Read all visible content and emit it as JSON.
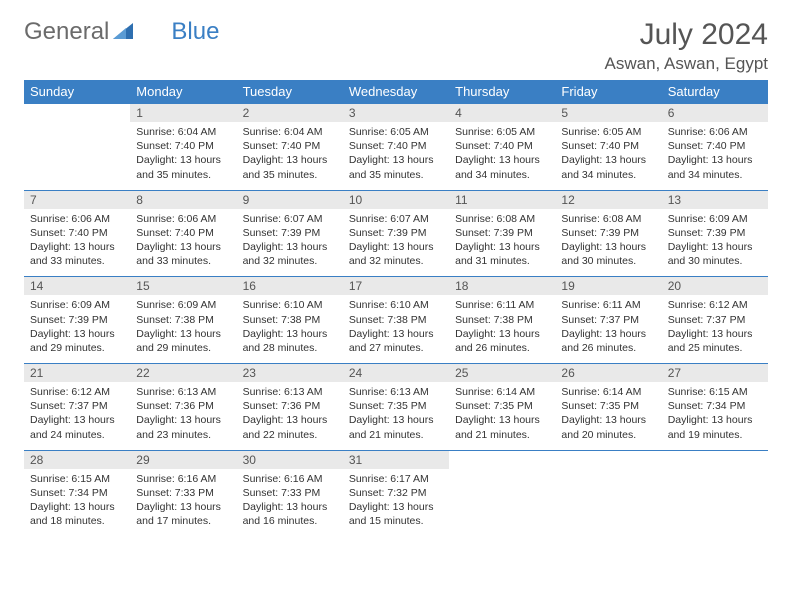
{
  "brand": {
    "part1": "General",
    "part2": "Blue"
  },
  "title": "July 2024",
  "location": "Aswan, Aswan, Egypt",
  "colors": {
    "header_bg": "#3a7fc4",
    "header_text": "#ffffff",
    "daynum_bg": "#e9e9e9",
    "text": "#333333",
    "rule": "#3a7fc4"
  },
  "weekdays": [
    "Sunday",
    "Monday",
    "Tuesday",
    "Wednesday",
    "Thursday",
    "Friday",
    "Saturday"
  ],
  "weeks": [
    [
      {
        "empty": true
      },
      {
        "n": "1",
        "sunrise": "Sunrise: 6:04 AM",
        "sunset": "Sunset: 7:40 PM",
        "daylight": "Daylight: 13 hours and 35 minutes."
      },
      {
        "n": "2",
        "sunrise": "Sunrise: 6:04 AM",
        "sunset": "Sunset: 7:40 PM",
        "daylight": "Daylight: 13 hours and 35 minutes."
      },
      {
        "n": "3",
        "sunrise": "Sunrise: 6:05 AM",
        "sunset": "Sunset: 7:40 PM",
        "daylight": "Daylight: 13 hours and 35 minutes."
      },
      {
        "n": "4",
        "sunrise": "Sunrise: 6:05 AM",
        "sunset": "Sunset: 7:40 PM",
        "daylight": "Daylight: 13 hours and 34 minutes."
      },
      {
        "n": "5",
        "sunrise": "Sunrise: 6:05 AM",
        "sunset": "Sunset: 7:40 PM",
        "daylight": "Daylight: 13 hours and 34 minutes."
      },
      {
        "n": "6",
        "sunrise": "Sunrise: 6:06 AM",
        "sunset": "Sunset: 7:40 PM",
        "daylight": "Daylight: 13 hours and 34 minutes."
      }
    ],
    [
      {
        "n": "7",
        "sunrise": "Sunrise: 6:06 AM",
        "sunset": "Sunset: 7:40 PM",
        "daylight": "Daylight: 13 hours and 33 minutes."
      },
      {
        "n": "8",
        "sunrise": "Sunrise: 6:06 AM",
        "sunset": "Sunset: 7:40 PM",
        "daylight": "Daylight: 13 hours and 33 minutes."
      },
      {
        "n": "9",
        "sunrise": "Sunrise: 6:07 AM",
        "sunset": "Sunset: 7:39 PM",
        "daylight": "Daylight: 13 hours and 32 minutes."
      },
      {
        "n": "10",
        "sunrise": "Sunrise: 6:07 AM",
        "sunset": "Sunset: 7:39 PM",
        "daylight": "Daylight: 13 hours and 32 minutes."
      },
      {
        "n": "11",
        "sunrise": "Sunrise: 6:08 AM",
        "sunset": "Sunset: 7:39 PM",
        "daylight": "Daylight: 13 hours and 31 minutes."
      },
      {
        "n": "12",
        "sunrise": "Sunrise: 6:08 AM",
        "sunset": "Sunset: 7:39 PM",
        "daylight": "Daylight: 13 hours and 30 minutes."
      },
      {
        "n": "13",
        "sunrise": "Sunrise: 6:09 AM",
        "sunset": "Sunset: 7:39 PM",
        "daylight": "Daylight: 13 hours and 30 minutes."
      }
    ],
    [
      {
        "n": "14",
        "sunrise": "Sunrise: 6:09 AM",
        "sunset": "Sunset: 7:39 PM",
        "daylight": "Daylight: 13 hours and 29 minutes."
      },
      {
        "n": "15",
        "sunrise": "Sunrise: 6:09 AM",
        "sunset": "Sunset: 7:38 PM",
        "daylight": "Daylight: 13 hours and 29 minutes."
      },
      {
        "n": "16",
        "sunrise": "Sunrise: 6:10 AM",
        "sunset": "Sunset: 7:38 PM",
        "daylight": "Daylight: 13 hours and 28 minutes."
      },
      {
        "n": "17",
        "sunrise": "Sunrise: 6:10 AM",
        "sunset": "Sunset: 7:38 PM",
        "daylight": "Daylight: 13 hours and 27 minutes."
      },
      {
        "n": "18",
        "sunrise": "Sunrise: 6:11 AM",
        "sunset": "Sunset: 7:38 PM",
        "daylight": "Daylight: 13 hours and 26 minutes."
      },
      {
        "n": "19",
        "sunrise": "Sunrise: 6:11 AM",
        "sunset": "Sunset: 7:37 PM",
        "daylight": "Daylight: 13 hours and 26 minutes."
      },
      {
        "n": "20",
        "sunrise": "Sunrise: 6:12 AM",
        "sunset": "Sunset: 7:37 PM",
        "daylight": "Daylight: 13 hours and 25 minutes."
      }
    ],
    [
      {
        "n": "21",
        "sunrise": "Sunrise: 6:12 AM",
        "sunset": "Sunset: 7:37 PM",
        "daylight": "Daylight: 13 hours and 24 minutes."
      },
      {
        "n": "22",
        "sunrise": "Sunrise: 6:13 AM",
        "sunset": "Sunset: 7:36 PM",
        "daylight": "Daylight: 13 hours and 23 minutes."
      },
      {
        "n": "23",
        "sunrise": "Sunrise: 6:13 AM",
        "sunset": "Sunset: 7:36 PM",
        "daylight": "Daylight: 13 hours and 22 minutes."
      },
      {
        "n": "24",
        "sunrise": "Sunrise: 6:13 AM",
        "sunset": "Sunset: 7:35 PM",
        "daylight": "Daylight: 13 hours and 21 minutes."
      },
      {
        "n": "25",
        "sunrise": "Sunrise: 6:14 AM",
        "sunset": "Sunset: 7:35 PM",
        "daylight": "Daylight: 13 hours and 21 minutes."
      },
      {
        "n": "26",
        "sunrise": "Sunrise: 6:14 AM",
        "sunset": "Sunset: 7:35 PM",
        "daylight": "Daylight: 13 hours and 20 minutes."
      },
      {
        "n": "27",
        "sunrise": "Sunrise: 6:15 AM",
        "sunset": "Sunset: 7:34 PM",
        "daylight": "Daylight: 13 hours and 19 minutes."
      }
    ],
    [
      {
        "n": "28",
        "sunrise": "Sunrise: 6:15 AM",
        "sunset": "Sunset: 7:34 PM",
        "daylight": "Daylight: 13 hours and 18 minutes."
      },
      {
        "n": "29",
        "sunrise": "Sunrise: 6:16 AM",
        "sunset": "Sunset: 7:33 PM",
        "daylight": "Daylight: 13 hours and 17 minutes."
      },
      {
        "n": "30",
        "sunrise": "Sunrise: 6:16 AM",
        "sunset": "Sunset: 7:33 PM",
        "daylight": "Daylight: 13 hours and 16 minutes."
      },
      {
        "n": "31",
        "sunrise": "Sunrise: 6:17 AM",
        "sunset": "Sunset: 7:32 PM",
        "daylight": "Daylight: 13 hours and 15 minutes."
      },
      {
        "empty": true
      },
      {
        "empty": true
      },
      {
        "empty": true
      }
    ]
  ]
}
